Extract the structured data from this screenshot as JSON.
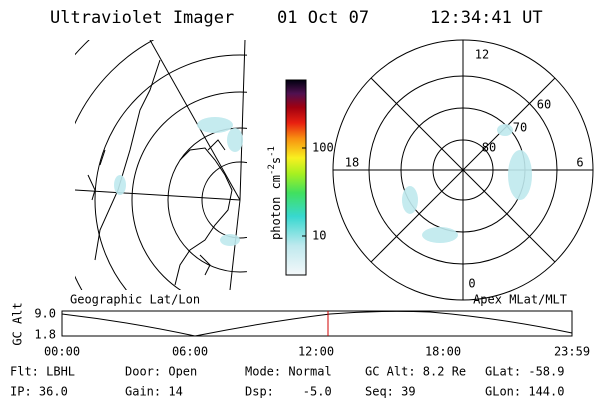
{
  "header": {
    "title": "Ultraviolet Imager",
    "date": "01 Oct 07",
    "time": "12:34:41 UT"
  },
  "geo_panel": {
    "label": "Geographic Lat/Lon"
  },
  "colorbar": {
    "unit_parts": [
      "photon cm",
      "-2",
      "s",
      "-1"
    ],
    "tick_labels": [
      "100",
      "10"
    ]
  },
  "polar_panel": {
    "label": "Apex MLat/MLT",
    "mlt_labels": [
      "12",
      "18",
      "6",
      "0"
    ],
    "mlat_labels": [
      "60",
      "70",
      "80"
    ]
  },
  "altitude_strip": {
    "axis_label": "GC Alt",
    "y_labels": [
      "9.0",
      "1.8"
    ],
    "x_labels": [
      "00:00",
      "06:00",
      "12:00",
      "18:00",
      "23:59"
    ]
  },
  "status": [
    [
      "Flt: LBHL",
      "Door: Open",
      "Mode: Normal",
      "GC Alt: 8.2 Re",
      "GLat: -58.9"
    ],
    [
      "IP: 36.0",
      "Gain: 14",
      "Dsp:    -5.0",
      "Seq: 39",
      "GLon: 144.0"
    ]
  ]
}
